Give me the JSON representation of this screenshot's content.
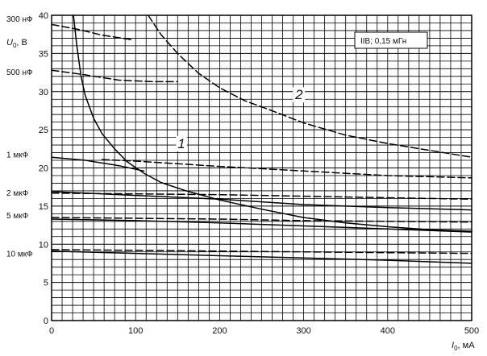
{
  "chart_data": {
    "type": "line",
    "x_label": "I",
    "x_label_sub": "0",
    "x_unit": ", мА",
    "y_label": "U",
    "y_label_sub": "0",
    "y_unit": ", В",
    "xlim": [
      0,
      500
    ],
    "ylim": [
      0,
      40
    ],
    "x_ticks": [
      0,
      100,
      200,
      300,
      400,
      500
    ],
    "y_ticks": [
      0,
      5,
      10,
      15,
      20,
      25,
      30,
      35,
      40
    ],
    "grid": true,
    "legend_box": "IIB; 0,15 мГн",
    "curve_labels": [
      {
        "text": "1",
        "x": 150,
        "y": 22.6
      },
      {
        "text": "2",
        "x": 290,
        "y": 29.0
      }
    ],
    "capacitance_labels": [
      {
        "text": "300 нФ",
        "y": 39.6
      },
      {
        "text": "500 нФ",
        "y": 32.6
      },
      {
        "text": "1 мкФ",
        "y": 21.8
      },
      {
        "text": "2 мкФ",
        "y": 16.8
      },
      {
        "text": "5 мкФ",
        "y": 13.8
      },
      {
        "text": "10 мкФ",
        "y": 8.8
      }
    ],
    "series": [
      {
        "name": "1",
        "style": "solid",
        "values": [
          [
            26,
            40
          ],
          [
            30,
            36
          ],
          [
            35,
            32
          ],
          [
            40,
            29.5
          ],
          [
            50,
            26.5
          ],
          [
            60,
            24.5
          ],
          [
            75,
            22.5
          ],
          [
            90,
            20.8
          ],
          [
            110,
            19.3
          ],
          [
            130,
            18.1
          ],
          [
            160,
            17.0
          ],
          [
            200,
            15.8
          ],
          [
            250,
            14.6
          ],
          [
            300,
            13.5
          ],
          [
            350,
            12.8
          ],
          [
            400,
            12.3
          ],
          [
            450,
            11.9
          ],
          [
            500,
            11.7
          ]
        ]
      },
      {
        "name": "2",
        "style": "dashed",
        "values": [
          [
            115,
            40
          ],
          [
            130,
            37.5
          ],
          [
            150,
            35
          ],
          [
            175,
            32.4
          ],
          [
            200,
            30.5
          ],
          [
            230,
            28.8
          ],
          [
            260,
            27.6
          ],
          [
            300,
            25.9
          ],
          [
            350,
            24.3
          ],
          [
            400,
            23.2
          ],
          [
            450,
            22.3
          ],
          [
            500,
            21.4
          ]
        ]
      },
      {
        "name": "300 нФ",
        "style": "dashed",
        "values": [
          [
            0,
            38.8
          ],
          [
            30,
            38.2
          ],
          [
            60,
            37.4
          ],
          [
            90,
            36.9
          ],
          [
            95,
            36.8
          ]
        ]
      },
      {
        "name": "500 нФ",
        "style": "dashed",
        "values": [
          [
            0,
            32.8
          ],
          [
            40,
            32.2
          ],
          [
            80,
            31.5
          ],
          [
            120,
            31.3
          ],
          [
            150,
            31.3
          ]
        ]
      },
      {
        "name": "1 мкФ (сплошн.)",
        "style": "solid",
        "values": [
          [
            0,
            21.4
          ],
          [
            40,
            21.0
          ],
          [
            80,
            20.3
          ],
          [
            110,
            19.6
          ]
        ]
      },
      {
        "name": "1 мкФ",
        "style": "dashed",
        "values": [
          [
            60,
            21.1
          ],
          [
            100,
            20.9
          ],
          [
            200,
            20.2
          ],
          [
            300,
            19.6
          ],
          [
            400,
            19.0
          ],
          [
            500,
            18.7
          ]
        ]
      },
      {
        "name": "2 мкФ (сплошн.)",
        "style": "solid",
        "values": [
          [
            0,
            16.9
          ],
          [
            100,
            16.4
          ],
          [
            200,
            15.9
          ],
          [
            300,
            15.2
          ],
          [
            400,
            14.8
          ],
          [
            500,
            14.5
          ]
        ]
      },
      {
        "name": "2 мкФ",
        "style": "dashed",
        "values": [
          [
            0,
            16.7
          ],
          [
            100,
            16.6
          ],
          [
            200,
            16.5
          ],
          [
            300,
            16.3
          ],
          [
            400,
            16.1
          ],
          [
            500,
            15.9
          ]
        ]
      },
      {
        "name": "5 мкФ (сплошн.)",
        "style": "solid",
        "values": [
          [
            0,
            13.3
          ],
          [
            100,
            13.1
          ],
          [
            200,
            12.8
          ],
          [
            300,
            12.4
          ],
          [
            400,
            12.0
          ],
          [
            500,
            11.6
          ]
        ]
      },
      {
        "name": "5 мкФ",
        "style": "dashed",
        "values": [
          [
            0,
            13.5
          ],
          [
            100,
            13.4
          ],
          [
            200,
            13.3
          ],
          [
            300,
            13.1
          ],
          [
            400,
            13.0
          ],
          [
            500,
            12.9
          ]
        ]
      },
      {
        "name": "10 мкФ (сплошн.)",
        "style": "solid",
        "values": [
          [
            0,
            9.1
          ],
          [
            100,
            8.8
          ],
          [
            200,
            8.5
          ],
          [
            300,
            8.2
          ],
          [
            400,
            7.9
          ],
          [
            500,
            7.5
          ]
        ]
      },
      {
        "name": "10 мкФ",
        "style": "dashed",
        "values": [
          [
            0,
            9.3
          ],
          [
            100,
            9.2
          ],
          [
            200,
            9.1
          ],
          [
            300,
            9.0
          ],
          [
            400,
            8.9
          ],
          [
            500,
            8.8
          ]
        ]
      }
    ]
  }
}
